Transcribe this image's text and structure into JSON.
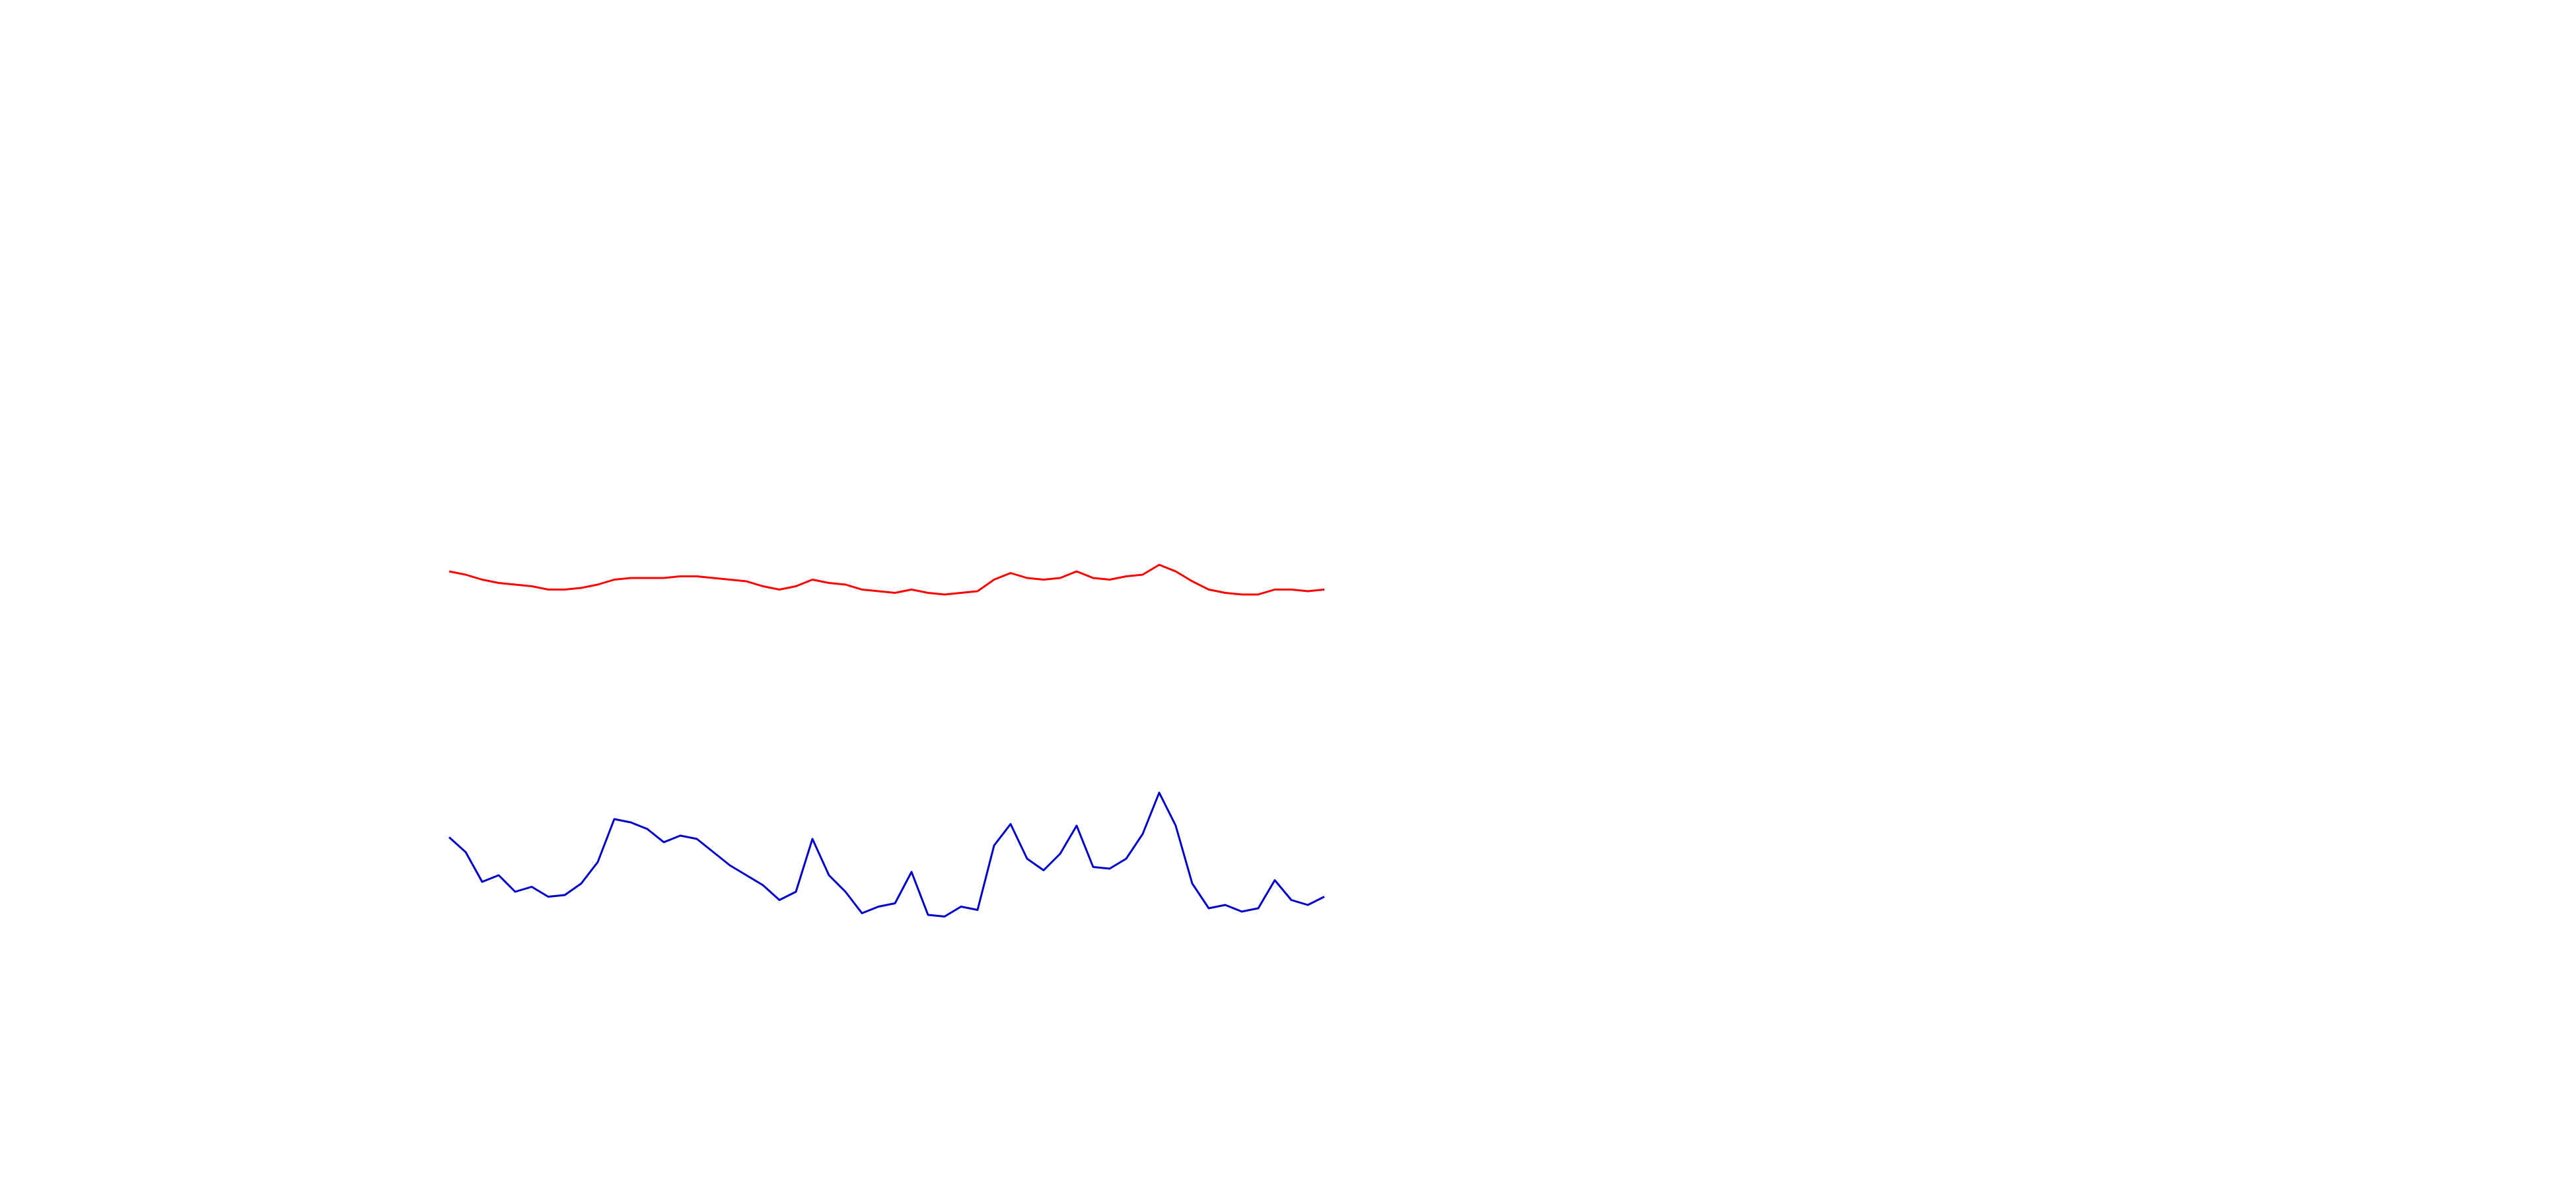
{
  "chart_data": {
    "type": "line",
    "ylim": [
      0,
      720
    ],
    "series": [
      {
        "color": "#ff0000",
        "values": [
          374,
          372,
          369,
          367,
          366,
          365,
          363,
          363,
          364,
          366,
          369,
          370,
          370,
          370,
          371,
          371,
          370,
          369,
          368,
          365,
          363,
          365,
          369,
          367,
          366,
          363,
          362,
          361,
          363,
          361,
          360,
          361,
          362,
          369,
          373,
          370,
          369,
          370,
          374,
          370,
          369,
          371,
          372,
          378,
          374,
          368,
          363,
          361,
          360,
          360,
          363,
          363,
          362,
          363
        ]
      },
      {
        "color": "#0000cc",
        "values": [
          213,
          204,
          186,
          190,
          180,
          183,
          177,
          178,
          185,
          198,
          224,
          222,
          218,
          210,
          214,
          212,
          204,
          196,
          190,
          184,
          175,
          180,
          212,
          190,
          180,
          167,
          171,
          173,
          192,
          166,
          165,
          171,
          169,
          208,
          221,
          200,
          193,
          203,
          220,
          195,
          194,
          200,
          215,
          240,
          220,
          185,
          170,
          172,
          168,
          170,
          187,
          175,
          172,
          177
        ]
      }
    ]
  }
}
